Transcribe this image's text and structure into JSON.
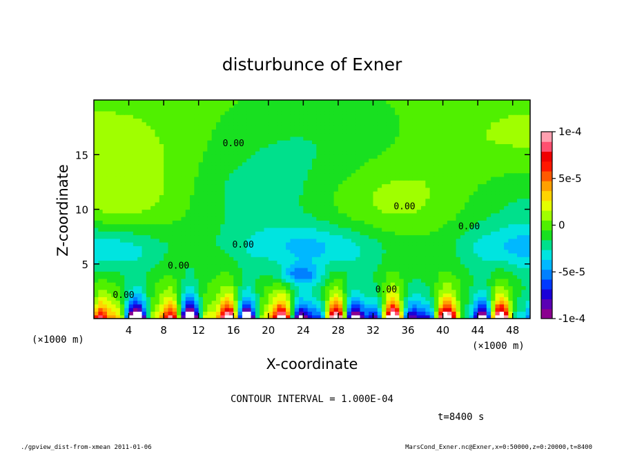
{
  "chart_data": {
    "type": "heatmap",
    "title": "disturbunce of Exner",
    "xlabel": "X-coordinate",
    "ylabel": "Z-coordinate",
    "x_unit_left": "(×1000 m)",
    "x_unit_right": "(×1000 m)",
    "xlim": [
      0,
      50
    ],
    "ylim": [
      0,
      20
    ],
    "x_ticks": [
      4,
      8,
      12,
      16,
      20,
      24,
      28,
      32,
      36,
      40,
      44,
      48
    ],
    "x_tick_labels": [
      "4",
      "8",
      "12",
      "16",
      "20",
      "24",
      "28",
      "32",
      "36",
      "40",
      "44",
      "48"
    ],
    "y_ticks": [
      5,
      10,
      15
    ],
    "y_tick_labels": [
      "5",
      "10",
      "15"
    ],
    "colorbar": {
      "range": [
        -0.0001,
        0.0001
      ],
      "tick_values": [
        0.0001,
        5e-05,
        0,
        -5e-05,
        -0.0001
      ],
      "tick_labels": [
        "1e-4",
        "5e-5",
        "0",
        "-5e-5",
        "-1e-4"
      ],
      "colors": [
        "#8b0090",
        "#5a00b4",
        "#1a00d8",
        "#0038ff",
        "#0080ff",
        "#00b8ff",
        "#00e4e0",
        "#00e08c",
        "#18e020",
        "#50f000",
        "#a0ff00",
        "#e4ff00",
        "#ffd400",
        "#ffa000",
        "#ff5a00",
        "#ff1800",
        "#f00000",
        "#ff5070",
        "#ffa0b0"
      ]
    },
    "contour_labels": [
      {
        "text": "0.00",
        "x": 16,
        "y": 16.1
      },
      {
        "text": "0.00",
        "x": 35.6,
        "y": 10.3
      },
      {
        "text": "0.00",
        "x": 43,
        "y": 8.5
      },
      {
        "text": "0.00",
        "x": 17.1,
        "y": 6.8
      },
      {
        "text": "0.00",
        "x": 9.7,
        "y": 4.9
      },
      {
        "text": "0.00",
        "x": 33.5,
        "y": 2.7
      },
      {
        "text": "0.00",
        "x": 3.4,
        "y": 2.2
      }
    ],
    "contour_interval": "CONTOUR INTERVAL = 1.000E-04",
    "time_label": "t=8400 s"
  },
  "footer": {
    "left": "./gpview_dist-from-xmean  2011-01-06",
    "right": "MarsCond_Exner.nc@Exner,x=0:50000,z=0:20000,t=8400"
  }
}
